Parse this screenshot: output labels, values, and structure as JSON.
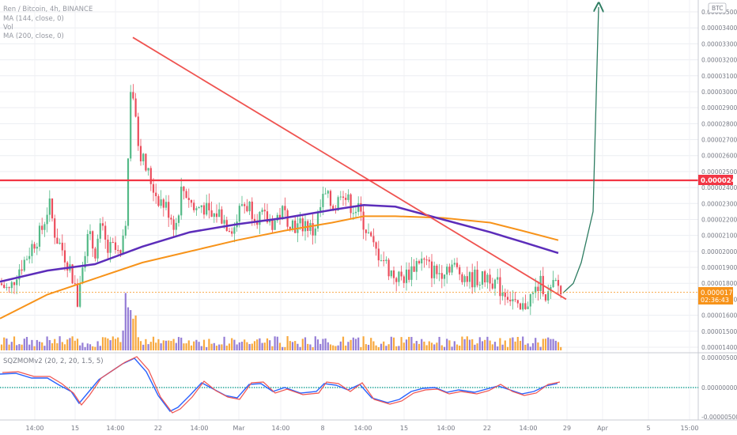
{
  "header": {
    "title": "Ren / Bitcoin, 4h, BINANCE",
    "indicators": [
      "MA (144, close, 0)",
      "Vol",
      "MA (200, close, 0)"
    ],
    "currency_badge": "BTC"
  },
  "price_axis": {
    "labels": [
      "0.00003500",
      "0.00003400",
      "0.00003300",
      "0.00003200",
      "0.00003100",
      "0.00003000",
      "0.00002900",
      "0.00002800",
      "0.00002700",
      "0.00002600",
      "0.00002500",
      "0.00002400",
      "0.00002300",
      "0.00002200",
      "0.00002100",
      "0.00002000",
      "0.00001900",
      "0.00001800",
      "0.00001700",
      "0.00001600",
      "0.00001500",
      "0.00001400"
    ],
    "resistance_label": "0.00002445",
    "current_price_label": "0.00001745",
    "countdown_label": "02:36:43"
  },
  "oscillator": {
    "title": "SQZMOMv2 (20, 2, 20, 1.5, 5)",
    "axis_labels": [
      "0.00000500",
      "0.00000000",
      "-0.00000500"
    ]
  },
  "time_axis": {
    "labels": [
      "14:00",
      "15",
      "14:00",
      "22",
      "14:00",
      "Mar",
      "14:00",
      "8",
      "14:00",
      "15",
      "14:00",
      "22",
      "14:00",
      "29",
      "Apr",
      "5",
      "15:00"
    ]
  },
  "colors": {
    "up": "#53b987",
    "down": "#eb4d5c",
    "ma144": "#f7931a",
    "ma200": "#5c2dba",
    "trendline": "#ef5350",
    "resistance": "#f23645",
    "projection": "#2e7d62",
    "vol_up": "#8a6fd1",
    "vol_down": "#f7a02a",
    "mom_fast": "#ef5350",
    "mom_slow": "#2962ff"
  },
  "chart_data": {
    "type": "candlestick",
    "symbol": "RENBTC",
    "interval": "4h",
    "ylim": [
      1.38e-05,
      3.56e-05
    ],
    "x_ticks": [
      "14:00",
      "15",
      "14:00",
      "22",
      "14:00",
      "Mar",
      "14:00",
      "8",
      "14:00",
      "15",
      "14:00",
      "22",
      "14:00",
      "29",
      "Apr",
      "5",
      "15:00"
    ],
    "price_path": [
      [
        0,
        1.8e-05
      ],
      [
        12,
        1.75e-05
      ],
      [
        22,
        1.88e-05
      ],
      [
        32,
        1.95e-05
      ],
      [
        42,
        2.05e-05
      ],
      [
        52,
        2.12e-05
      ],
      [
        62,
        2.3e-05
      ],
      [
        70,
        2.1e-05
      ],
      [
        80,
        2e-05
      ],
      [
        90,
        1.88e-05
      ],
      [
        98,
        1.68e-05
      ],
      [
        104,
        1.95e-05
      ],
      [
        112,
        2.1e-05
      ],
      [
        120,
        2e-05
      ],
      [
        128,
        2.15e-05
      ],
      [
        136,
        2e-05
      ],
      [
        144,
        2.02e-05
      ],
      [
        152,
        1.95e-05
      ],
      [
        158,
        2.1e-05
      ],
      [
        163,
        2.7e-05
      ],
      [
        166,
        3.15e-05
      ],
      [
        170,
        2.85e-05
      ],
      [
        176,
        2.65e-05
      ],
      [
        182,
        2.55e-05
      ],
      [
        190,
        2.45e-05
      ],
      [
        198,
        2.35e-05
      ],
      [
        206,
        2.3e-05
      ],
      [
        214,
        2.25e-05
      ],
      [
        222,
        2.15e-05
      ],
      [
        230,
        2.4e-05
      ],
      [
        238,
        2.35e-05
      ],
      [
        246,
        2.25e-05
      ],
      [
        256,
        2.3e-05
      ],
      [
        266,
        2.2e-05
      ],
      [
        276,
        2.25e-05
      ],
      [
        286,
        2.18e-05
      ],
      [
        296,
        2.15e-05
      ],
      [
        306,
        2.3e-05
      ],
      [
        316,
        2.28e-05
      ],
      [
        326,
        2.22e-05
      ],
      [
        336,
        2.2e-05
      ],
      [
        346,
        2.18e-05
      ],
      [
        356,
        2.25e-05
      ],
      [
        366,
        2.2e-05
      ],
      [
        376,
        2.15e-05
      ],
      [
        386,
        2.18e-05
      ],
      [
        396,
        2.12e-05
      ],
      [
        404,
        2.25e-05
      ],
      [
        410,
        2.35e-05
      ],
      [
        418,
        2.3e-05
      ],
      [
        426,
        2.28e-05
      ],
      [
        432,
        2.42e-05
      ],
      [
        438,
        2.32e-05
      ],
      [
        446,
        2.28e-05
      ],
      [
        454,
        2.25e-05
      ],
      [
        460,
        2.18e-05
      ],
      [
        466,
        2.1e-05
      ],
      [
        474,
        2e-05
      ],
      [
        482,
        1.98e-05
      ],
      [
        490,
        1.9e-05
      ],
      [
        498,
        1.85e-05
      ],
      [
        506,
        1.83e-05
      ],
      [
        514,
        1.85e-05
      ],
      [
        522,
        1.9e-05
      ],
      [
        530,
        1.95e-05
      ],
      [
        538,
        1.92e-05
      ],
      [
        546,
        1.88e-05
      ],
      [
        554,
        1.86e-05
      ],
      [
        562,
        1.9e-05
      ],
      [
        570,
        1.92e-05
      ],
      [
        578,
        1.88e-05
      ],
      [
        586,
        1.86e-05
      ],
      [
        594,
        1.82e-05
      ],
      [
        602,
        1.84e-05
      ],
      [
        610,
        1.82e-05
      ],
      [
        618,
        1.86e-05
      ],
      [
        626,
        1.8e-05
      ],
      [
        634,
        1.76e-05
      ],
      [
        642,
        1.74e-05
      ],
      [
        650,
        1.68e-05
      ],
      [
        656,
        1.6e-05
      ],
      [
        662,
        1.65e-05
      ],
      [
        668,
        1.7e-05
      ],
      [
        674,
        1.72e-05
      ],
      [
        680,
        1.78e-05
      ],
      [
        686,
        1.8e-05
      ],
      [
        692,
        1.71e-05
      ],
      [
        698,
        1.76e-05
      ],
      [
        704,
        1.8e-05
      ],
      [
        710,
        1.74e-05
      ]
    ],
    "ma144_path": [
      [
        0,
        1.58e-05
      ],
      [
        60,
        1.73e-05
      ],
      [
        120,
        1.83e-05
      ],
      [
        180,
        1.93e-05
      ],
      [
        240,
        2e-05
      ],
      [
        300,
        2.07e-05
      ],
      [
        360,
        2.13e-05
      ],
      [
        420,
        2.18e-05
      ],
      [
        460,
        2.22e-05
      ],
      [
        500,
        2.22e-05
      ],
      [
        560,
        2.21e-05
      ],
      [
        620,
        2.18e-05
      ],
      [
        660,
        2.13e-05
      ],
      [
        706,
        2.07e-05
      ]
    ],
    "ma200_path": [
      [
        0,
        1.81e-05
      ],
      [
        60,
        1.88e-05
      ],
      [
        120,
        1.92e-05
      ],
      [
        180,
        2.03e-05
      ],
      [
        240,
        2.12e-05
      ],
      [
        300,
        2.17e-05
      ],
      [
        360,
        2.21e-05
      ],
      [
        420,
        2.26e-05
      ],
      [
        460,
        2.29e-05
      ],
      [
        500,
        2.28e-05
      ],
      [
        560,
        2.2e-05
      ],
      [
        620,
        2.12e-05
      ],
      [
        660,
        2.06e-05
      ],
      [
        706,
        1.99e-05
      ]
    ],
    "trendline": [
      [
        168,
        3.34e-05
      ],
      [
        716,
        1.7e-05
      ]
    ],
    "resistance": 2.445e-05,
    "current_price": 1.745e-05,
    "projection": [
      [
        712,
        1.74e-05
      ],
      [
        725,
        1.8e-05
      ],
      [
        735,
        1.93e-05
      ],
      [
        750,
        2.25e-05
      ],
      [
        757,
        3.53e-05
      ]
    ],
    "volume_range": [
      0,
      1
    ]
  }
}
